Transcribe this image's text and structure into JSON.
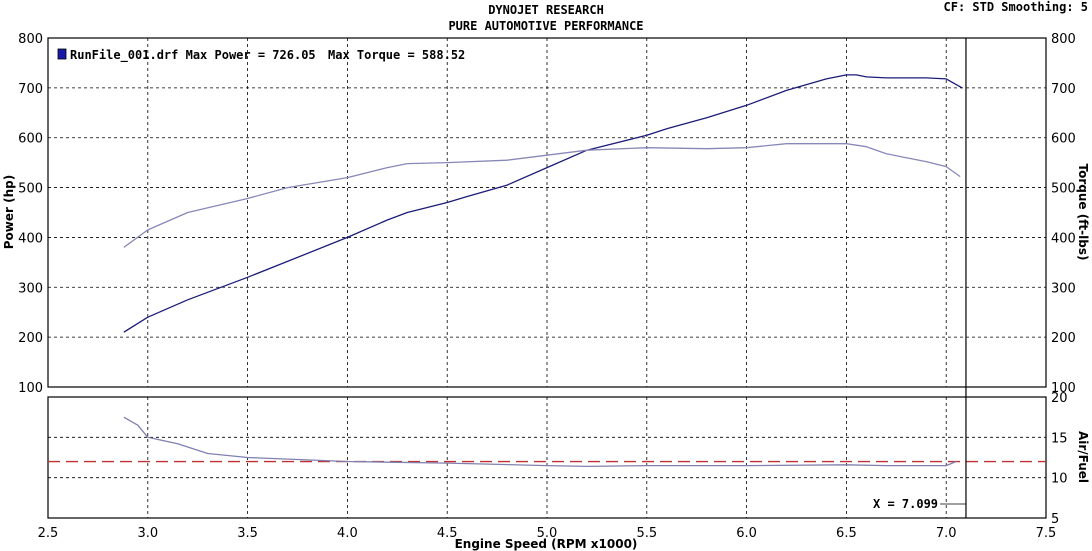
{
  "header": {
    "line1": "DYNOJET RESEARCH",
    "line2": "PURE AUTOMOTIVE PERFORMANCE",
    "settings": "CF: STD  Smoothing: 5"
  },
  "legend": {
    "run": "RunFile_001.drf",
    "max_power_label": "Max Power = 726.05",
    "max_torque_label": "Max Torque = 588.52",
    "swatch_color": "#1a1aa8"
  },
  "cursor": {
    "x": 7.099,
    "label": "X = 7.099"
  },
  "chart_data": [
    {
      "type": "line",
      "panel": "power-torque",
      "xlabel": "Engine Speed (RPM x1000)",
      "ylabel": "Power (hp)",
      "y2label": "Torque (ft-lbs)",
      "xlim": [
        2.5,
        7.5
      ],
      "ylim": [
        100,
        800
      ],
      "y2lim": [
        100,
        800
      ],
      "xticks": [
        "2.5",
        "3.0",
        "3.5",
        "4.0",
        "4.5",
        "5.0",
        "5.5",
        "6.0",
        "6.5",
        "7.0",
        "7.5"
      ],
      "yticks": [
        "100",
        "200",
        "300",
        "400",
        "500",
        "600",
        "700",
        "800"
      ],
      "grid": true,
      "series": [
        {
          "color": "#1c1c78",
          "x": [
            2.88,
            3.0,
            3.2,
            3.5,
            3.7,
            4.0,
            4.2,
            4.3,
            4.5,
            4.6,
            4.8,
            5.0,
            5.2,
            5.5,
            5.6,
            5.8,
            6.0,
            6.2,
            6.4,
            6.5,
            6.55,
            6.6,
            6.7,
            6.8,
            6.9,
            7.0,
            7.08
          ],
          "y": [
            210,
            240,
            275,
            320,
            352,
            400,
            435,
            450,
            470,
            482,
            505,
            540,
            575,
            605,
            618,
            640,
            665,
            695,
            718,
            726,
            726,
            722,
            720,
            720,
            720,
            718,
            700
          ]
        },
        {
          "color": "#8888b8",
          "x": [
            2.88,
            3.0,
            3.2,
            3.5,
            3.7,
            4.0,
            4.2,
            4.3,
            4.5,
            4.8,
            5.0,
            5.2,
            5.5,
            5.8,
            6.0,
            6.2,
            6.5,
            6.6,
            6.7,
            6.8,
            6.9,
            7.0,
            7.07
          ],
          "y": [
            380,
            415,
            450,
            478,
            500,
            520,
            540,
            548,
            550,
            555,
            565,
            575,
            580,
            578,
            580,
            588,
            588,
            582,
            568,
            560,
            552,
            542,
            522
          ]
        }
      ]
    },
    {
      "type": "line",
      "panel": "air-fuel",
      "ylabel": "Air/Fuel",
      "xlim": [
        2.5,
        7.5
      ],
      "ylim": [
        5,
        20
      ],
      "yticks": [
        "5",
        "10",
        "15",
        "20"
      ],
      "grid": true,
      "reference_line": {
        "y": 12.0,
        "color": "#c03030"
      },
      "series": [
        {
          "color": "#8080b0",
          "x": [
            2.88,
            2.95,
            3.0,
            3.15,
            3.3,
            3.5,
            4.0,
            4.5,
            5.0,
            5.2,
            5.5,
            6.0,
            6.5,
            6.7,
            7.0,
            7.05
          ],
          "y": [
            17.5,
            16.5,
            15.0,
            14.2,
            13.0,
            12.5,
            12.0,
            11.8,
            11.5,
            11.4,
            11.5,
            11.5,
            11.6,
            11.5,
            11.5,
            12.0
          ]
        }
      ]
    }
  ]
}
